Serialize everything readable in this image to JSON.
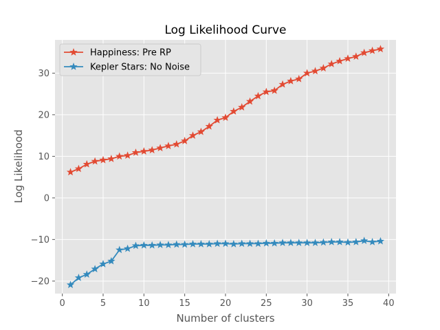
{
  "chart_data": {
    "type": "line",
    "title": "Log Likelihood Curve",
    "xlabel": "Number of clusters",
    "ylabel": "Log Likelihood",
    "xlim": [
      -0.9,
      40.9
    ],
    "ylim": [
      -23.0,
      38.0
    ],
    "xticks": [
      0,
      5,
      10,
      15,
      20,
      25,
      30,
      35,
      40
    ],
    "yticks": [
      -20,
      -10,
      0,
      10,
      20,
      30
    ],
    "grid": true,
    "legend": "top-left",
    "marker": "star",
    "series": [
      {
        "name": "Happiness: Pre RP",
        "color": "#e24a33",
        "x": [
          1,
          2,
          3,
          4,
          5,
          6,
          7,
          8,
          9,
          10,
          11,
          12,
          13,
          14,
          15,
          16,
          17,
          18,
          19,
          20,
          21,
          22,
          23,
          24,
          25,
          26,
          27,
          28,
          29,
          30,
          31,
          32,
          33,
          34,
          35,
          36,
          37,
          38,
          39
        ],
        "values": [
          6.2,
          7.0,
          8.1,
          8.8,
          9.1,
          9.4,
          10.0,
          10.2,
          10.9,
          11.2,
          11.5,
          12.0,
          12.5,
          12.9,
          13.7,
          15.0,
          15.9,
          17.2,
          18.7,
          19.3,
          20.8,
          21.8,
          23.2,
          24.5,
          25.5,
          25.8,
          27.3,
          28.1,
          28.6,
          30.0,
          30.5,
          31.2,
          32.2,
          32.9,
          33.5,
          34.0,
          34.9,
          35.4,
          35.8
        ]
      },
      {
        "name": "Kepler Stars: No Noise",
        "color": "#348abd",
        "x": [
          1,
          2,
          3,
          4,
          5,
          6,
          7,
          8,
          9,
          10,
          11,
          12,
          13,
          14,
          15,
          16,
          17,
          18,
          19,
          20,
          21,
          22,
          23,
          24,
          25,
          26,
          27,
          28,
          29,
          30,
          31,
          32,
          33,
          34,
          35,
          36,
          37,
          38,
          39
        ],
        "values": [
          -20.9,
          -19.2,
          -18.4,
          -17.1,
          -15.9,
          -15.2,
          -12.5,
          -12.2,
          -11.5,
          -11.4,
          -11.4,
          -11.3,
          -11.3,
          -11.2,
          -11.2,
          -11.1,
          -11.1,
          -11.1,
          -11.0,
          -11.0,
          -11.1,
          -11.0,
          -11.0,
          -11.0,
          -10.9,
          -10.9,
          -10.8,
          -10.8,
          -10.8,
          -10.8,
          -10.8,
          -10.7,
          -10.6,
          -10.6,
          -10.7,
          -10.6,
          -10.3,
          -10.6,
          -10.4
        ]
      }
    ]
  }
}
